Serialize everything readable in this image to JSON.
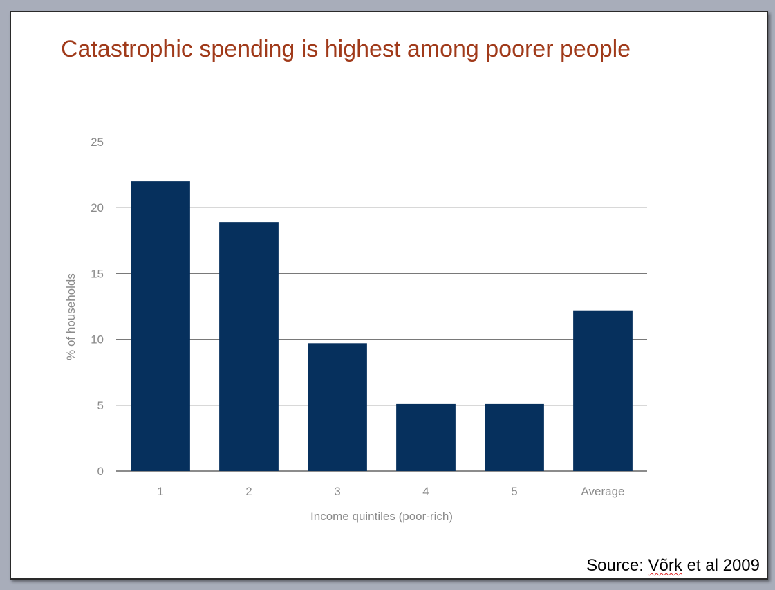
{
  "slide": {
    "title": "Catastrophic spending is highest among poorer people",
    "source_prefix": "Source: ",
    "source_author": "Võrk",
    "source_suffix": " et al 2009"
  },
  "colors": {
    "background": "#a8adba",
    "slide": "#ffffff",
    "title": "#a03a1a",
    "bar": "#06305d",
    "grid": "#666666",
    "axis_text": "#8a8a8a"
  },
  "chart_data": {
    "type": "bar",
    "categories": [
      "1",
      "2",
      "3",
      "4",
      "5",
      "Average"
    ],
    "values": [
      22,
      18.9,
      9.7,
      5.1,
      5.1,
      12.2
    ],
    "xlabel": "Income quintiles (poor-rich)",
    "ylabel": "% of households",
    "ylim": [
      0,
      25
    ],
    "yticks": [
      0,
      5,
      10,
      15,
      20,
      25
    ],
    "grid": true
  }
}
